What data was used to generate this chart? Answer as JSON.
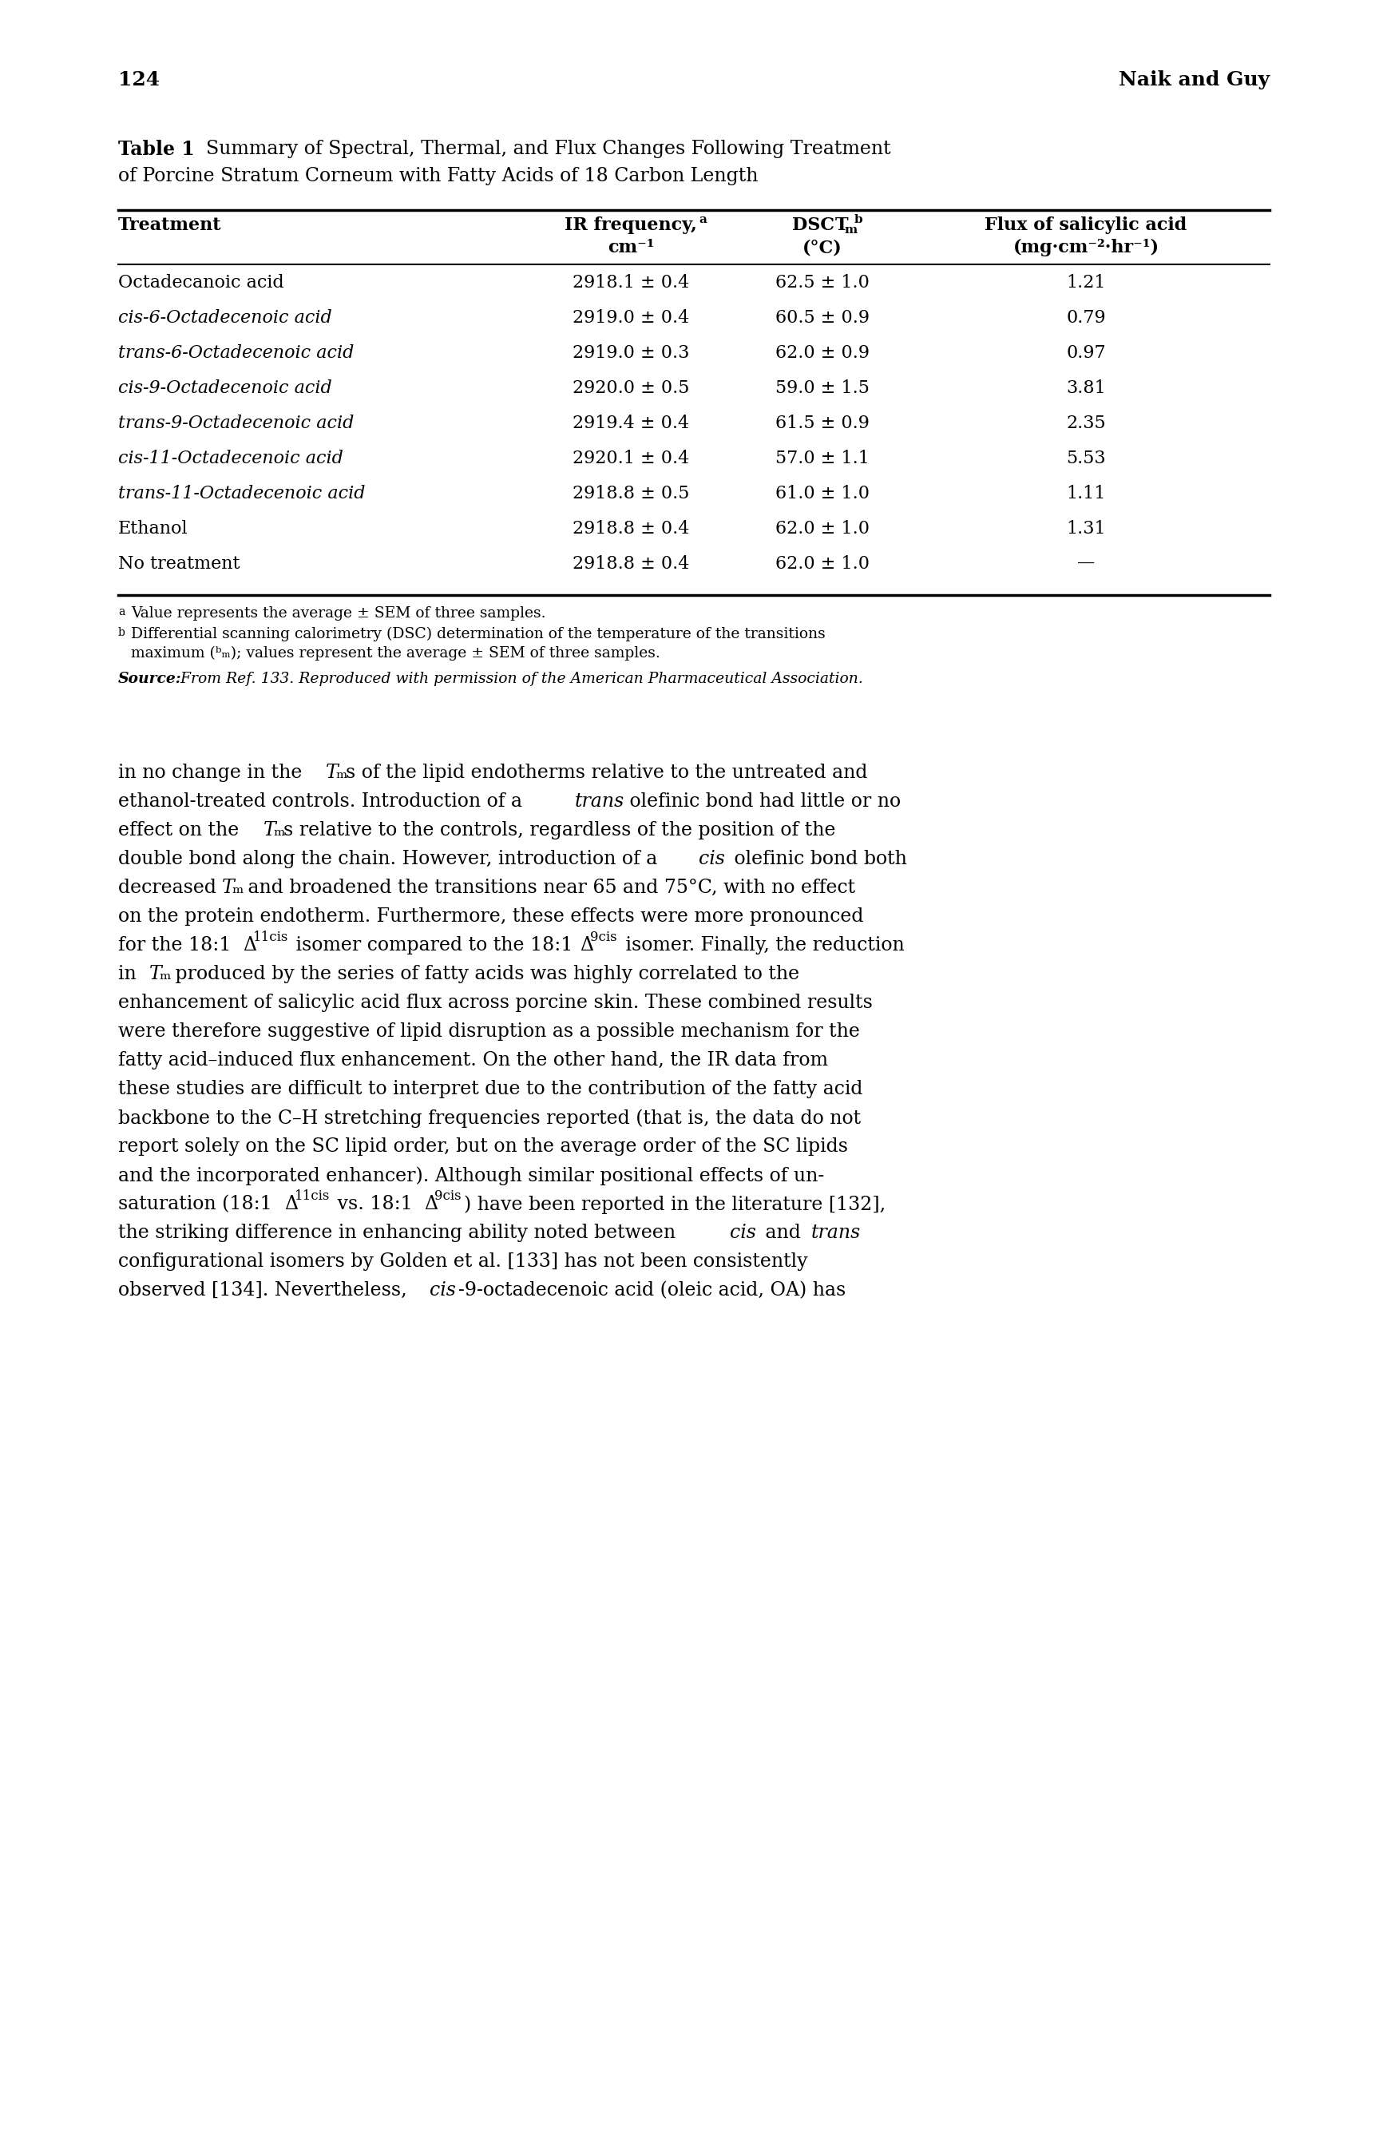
{
  "page_number": "124",
  "page_header_right": "Naik and Guy",
  "table_title_bold": "Table 1",
  "rows": [
    [
      "Octadecanoic acid",
      "2918.1 ± 0.4",
      "62.5 ± 1.0",
      "1.21"
    ],
    [
      "cis-6-Octadecenoic acid",
      "2919.0 ± 0.4",
      "60.5 ± 0.9",
      "0.79"
    ],
    [
      "trans-6-Octadecenoic acid",
      "2919.0 ± 0.3",
      "62.0 ± 0.9",
      "0.97"
    ],
    [
      "cis-9-Octadecenoic acid",
      "2920.0 ± 0.5",
      "59.0 ± 1.5",
      "3.81"
    ],
    [
      "trans-9-Octadecenoic acid",
      "2919.4 ± 0.4",
      "61.5 ± 0.9",
      "2.35"
    ],
    [
      "cis-11-Octadecenoic acid",
      "2920.1 ± 0.4",
      "57.0 ± 1.1",
      "5.53"
    ],
    [
      "trans-11-Octadecenoic acid",
      "2918.8 ± 0.5",
      "61.0 ± 1.0",
      "1.11"
    ],
    [
      "Ethanol",
      "2918.8 ± 0.4",
      "62.0 ± 1.0",
      "1.31"
    ],
    [
      "No treatment",
      "2918.8 ± 0.4",
      "62.0 ± 1.0",
      "—"
    ]
  ],
  "italic_treatments": [
    "cis-6-Octadecenoic acid",
    "trans-6-Octadecenoic acid",
    "cis-9-Octadecenoic acid",
    "trans-9-Octadecenoic acid",
    "cis-11-Octadecenoic acid",
    "trans-11-Octadecenoic acid"
  ],
  "background_color": "#ffffff"
}
